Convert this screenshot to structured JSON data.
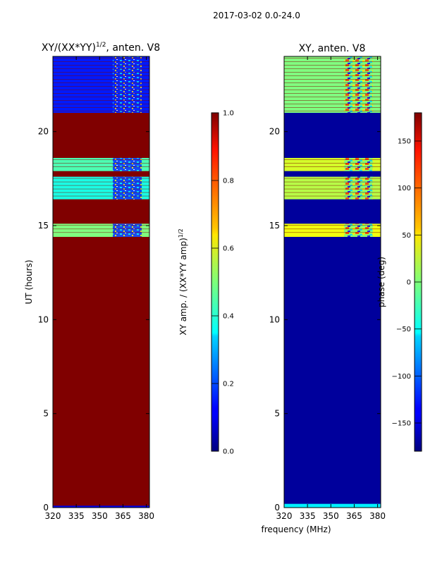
{
  "suptitle": "2017-03-02 0.0-24.0",
  "panels": [
    {
      "title_main": "XY/(XX*YY)",
      "title_sup": "1/2",
      "title_tail": ", anten. V8",
      "ylabel": "UT (hours)",
      "xticks": [
        "320",
        "335",
        "350",
        "365",
        "380"
      ],
      "yticks": [
        "0",
        "5",
        "10",
        "15",
        "20"
      ]
    },
    {
      "title": "XY, anten. V8",
      "xlabel": "frequency (MHz)",
      "xticks": [
        "320",
        "335",
        "350",
        "365",
        "380"
      ],
      "yticks": [
        "0",
        "5",
        "10",
        "15",
        "20"
      ]
    }
  ],
  "colorbars": [
    {
      "label_main": "XY amp. / (XX*YY amp)",
      "label_sup": "1/2",
      "ticks": [
        "0.0",
        "0.2",
        "0.4",
        "0.6",
        "0.8",
        "1.0"
      ],
      "colormap": "jet"
    },
    {
      "label": "phase (deg)",
      "ticks": [
        "−150",
        "−100",
        "−50",
        "0",
        "50",
        "100",
        "150"
      ],
      "colormap": "jet"
    }
  ],
  "chart_data": [
    {
      "type": "heatmap",
      "x_range": [
        320,
        382
      ],
      "y_range": [
        0,
        24
      ],
      "value_range": [
        0,
        1
      ],
      "background_value": 1.0,
      "bands": [
        {
          "y": [
            0,
            0.1
          ],
          "value": 0.1
        },
        {
          "y": [
            14.4,
            15.1
          ],
          "value": 0.5
        },
        {
          "y": [
            16.4,
            17.6
          ],
          "value": 0.4
        },
        {
          "y": [
            17.9,
            18.6
          ],
          "value": 0.45
        },
        {
          "y": [
            21.0,
            24.0
          ],
          "value": 0.15
        }
      ]
    },
    {
      "type": "heatmap",
      "x_range": [
        320,
        382
      ],
      "y_range": [
        0,
        24
      ],
      "value_range": [
        -180,
        180
      ],
      "background_value": -170,
      "bands": [
        {
          "y": [
            0,
            0.2
          ],
          "value": -50
        },
        {
          "y": [
            14.4,
            15.1
          ],
          "value": 40
        },
        {
          "y": [
            16.4,
            17.6
          ],
          "value": 20
        },
        {
          "y": [
            17.9,
            18.6
          ],
          "value": 30
        },
        {
          "y": [
            21.0,
            24.0
          ],
          "value": 0
        }
      ]
    }
  ]
}
